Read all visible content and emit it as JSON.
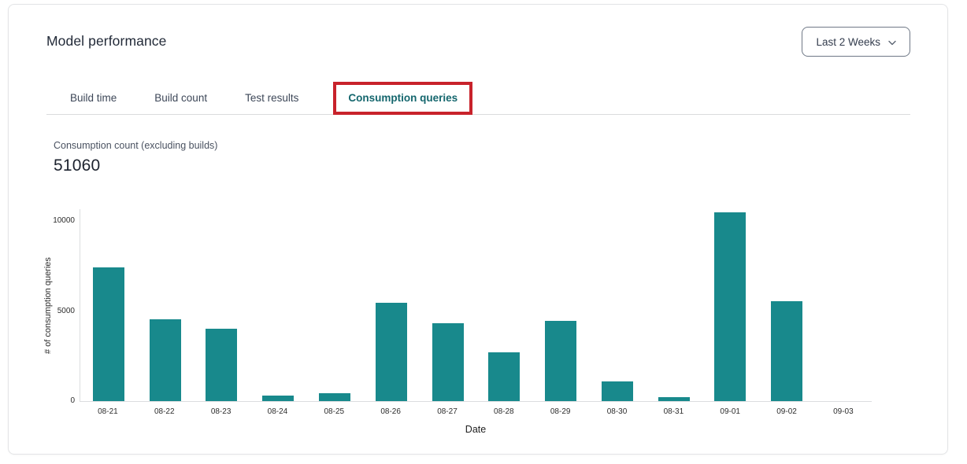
{
  "header": {
    "title": "Model performance",
    "range_selector": {
      "value": "Last 2 Weeks"
    }
  },
  "tabs": [
    {
      "label": "Build time",
      "active": false
    },
    {
      "label": "Build count",
      "active": false
    },
    {
      "label": "Test results",
      "active": false
    },
    {
      "label": "Consumption queries",
      "active": true,
      "annotated": true
    }
  ],
  "metric": {
    "label": "Consumption count (excluding builds)",
    "value": "51060"
  },
  "chart_data": {
    "type": "bar",
    "categories": [
      "08-21",
      "08-22",
      "08-23",
      "08-24",
      "08-25",
      "08-26",
      "08-27",
      "08-28",
      "08-29",
      "08-30",
      "08-31",
      "09-01",
      "09-02",
      "09-03"
    ],
    "values": [
      7420,
      4560,
      4030,
      300,
      430,
      5460,
      4330,
      2710,
      4450,
      1110,
      210,
      10490,
      5560,
      0
    ],
    "title": "",
    "xlabel": "Date",
    "ylabel": "# of consumption queries",
    "yticks": [
      0,
      5000,
      10000
    ],
    "ylim": [
      0,
      10700
    ],
    "grid": false,
    "legend": false,
    "bar_color": "#18898C"
  },
  "colors": {
    "accent_teal": "#18898C",
    "active_tab_text": "#14666D",
    "annotation_red": "#C8222B"
  }
}
